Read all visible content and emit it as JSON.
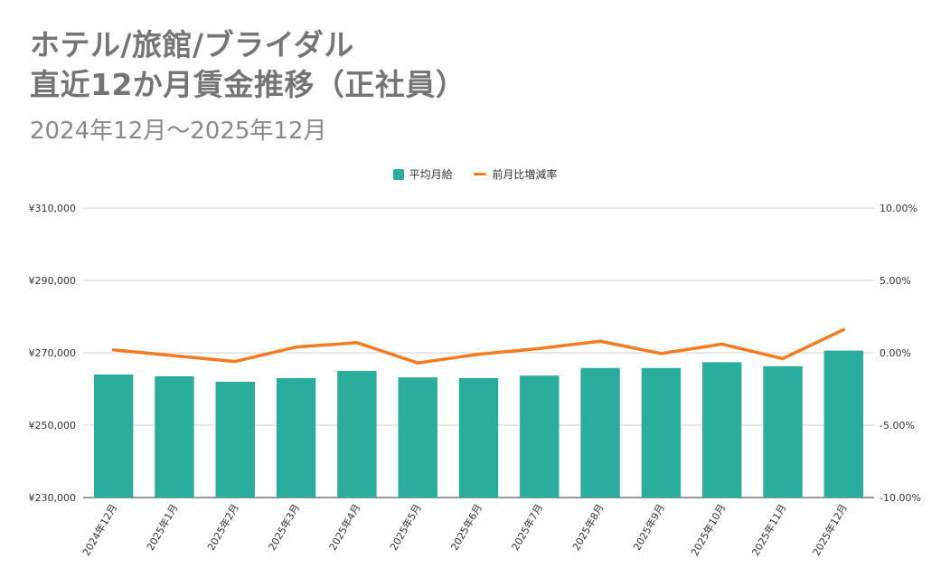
{
  "title_line1": "ホテル/旅館/ブライダル",
  "title_line2": "直近12か月賃金推移（正社員）",
  "subtitle": "2024年12月～2025年12月",
  "legend": [
    {
      "label": "平均月給",
      "color": "#2aad9c",
      "kind": "bar"
    },
    {
      "label": "前月比増減率",
      "color": "#f47b1f",
      "kind": "line"
    }
  ],
  "chart_data": {
    "type": "bar",
    "categories": [
      "2024年12月",
      "2025年1月",
      "2025年2月",
      "2025年3月",
      "2025年4月",
      "2025年5月",
      "2025年6月",
      "2025年7月",
      "2025年8月",
      "2025年9月",
      "2025年10月",
      "2025年11月",
      "2025年12月"
    ],
    "series": [
      {
        "name": "平均月給",
        "type": "bar",
        "axis": "left",
        "color": "#2aad9c",
        "values": [
          264000,
          263500,
          262000,
          263000,
          265000,
          263200,
          263000,
          263700,
          265800,
          265800,
          267400,
          266300,
          270600
        ]
      },
      {
        "name": "前月比増減率",
        "type": "line",
        "axis": "right",
        "color": "#f47b1f",
        "values": [
          0.2,
          -0.2,
          -0.6,
          0.4,
          0.7,
          -0.7,
          -0.1,
          0.3,
          0.8,
          -0.05,
          0.6,
          -0.4,
          1.6
        ]
      }
    ],
    "y_left": {
      "min": 230000,
      "max": 310000,
      "ticks": [
        "¥230,000",
        "¥250,000",
        "¥270,000",
        "¥290,000",
        "¥310,000"
      ]
    },
    "y_right": {
      "min": -10,
      "max": 10,
      "ticks": [
        "-10.00%",
        "-5.00%",
        "0.00%",
        "5.00%",
        "10.00%"
      ]
    },
    "grid": true,
    "legend_position": "top"
  }
}
